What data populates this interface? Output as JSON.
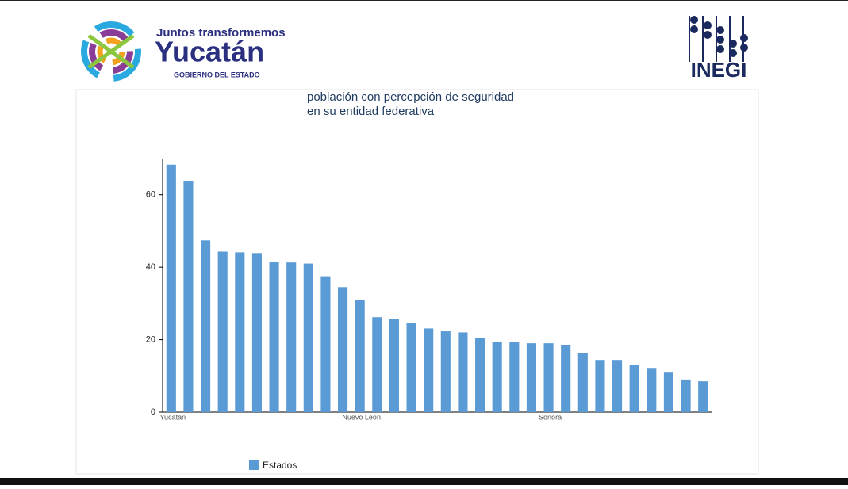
{
  "header": {
    "tagline": "Juntos transformemos",
    "state": "Yucatán",
    "government": "GOBIERNO DEL ESTADO",
    "institute": "INEGI"
  },
  "chart_data": {
    "type": "bar",
    "title": [
      "población con percepción de seguridad",
      "en su entidad federativa"
    ],
    "categories": [
      "Yucatán",
      null,
      null,
      null,
      null,
      null,
      null,
      null,
      null,
      null,
      null,
      "Nuevo León",
      null,
      null,
      null,
      null,
      null,
      null,
      null,
      null,
      null,
      null,
      "Sonora",
      null,
      null,
      null,
      null,
      null,
      null,
      null,
      null,
      null
    ],
    "series": [
      {
        "name": "Estados",
        "color": "#5b9bd5",
        "values": [
          68.3,
          63.7,
          47.4,
          44.3,
          44.1,
          43.9,
          41.5,
          41.3,
          41.0,
          37.5,
          34.5,
          31.0,
          26.2,
          25.8,
          24.7,
          23.1,
          22.3,
          22.0,
          20.5,
          19.4,
          19.4,
          19.0,
          19.0,
          18.6,
          16.4,
          14.4,
          14.4,
          13.1,
          12.2,
          10.9,
          9.0,
          8.5
        ]
      }
    ],
    "ylim": [
      0,
      70
    ],
    "yticks": [
      0,
      20,
      40,
      60
    ],
    "grid": false,
    "legend": "bottom-left"
  }
}
